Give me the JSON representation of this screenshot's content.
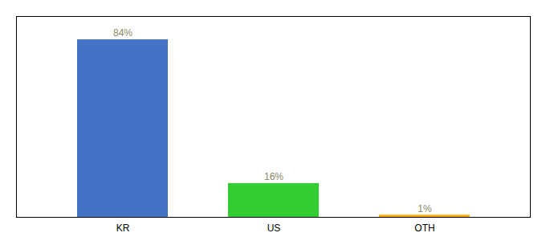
{
  "chart_data": {
    "type": "bar",
    "categories": [
      "KR",
      "US",
      "OTH"
    ],
    "values": [
      84,
      16,
      1
    ],
    "value_labels": [
      "84%",
      "16%",
      "1%"
    ],
    "colors": [
      "#4472c4",
      "#33cc33",
      "#ffaa00"
    ],
    "ylim": [
      0,
      95
    ],
    "data_labels": true,
    "tick_labels": "x",
    "grid": false
  }
}
